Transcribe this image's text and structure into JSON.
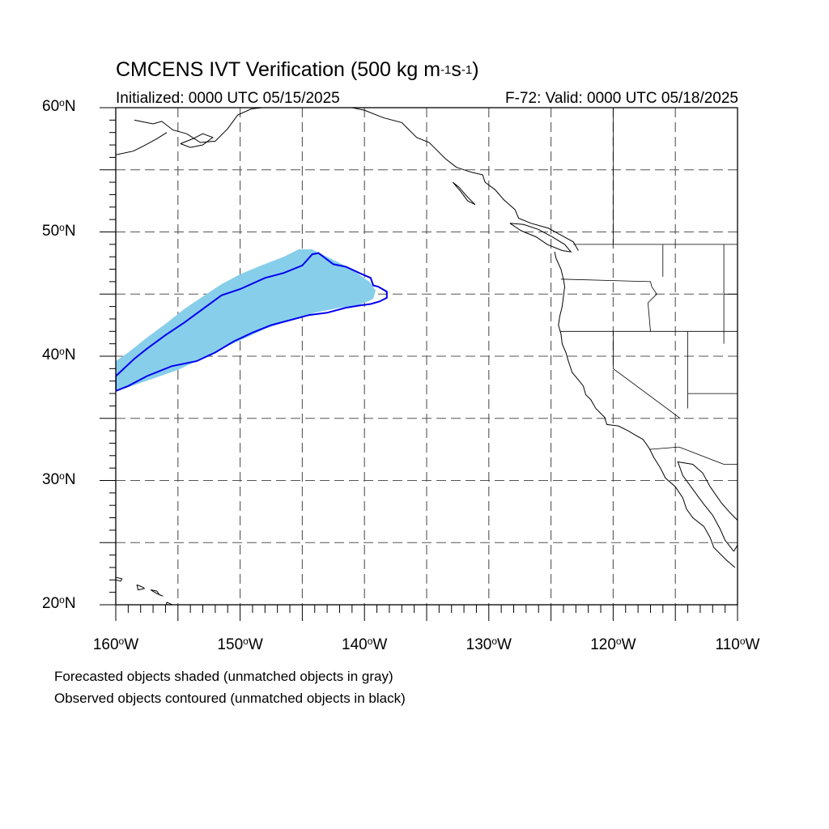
{
  "title": {
    "prefix": "CMCENS IVT Verification (500 kg m",
    "exp1": "-1",
    "mid": "s",
    "exp2": "-1",
    "suffix": ")"
  },
  "initialized": "Initialized: 0000 UTC 05/15/2025",
  "valid": "F-72: Valid: 0000 UTC 05/18/2025",
  "latitude_labels": [
    {
      "lat": 60,
      "num": "60",
      "deg": "o",
      "hemi": "N"
    },
    {
      "lat": 50,
      "num": "50",
      "deg": "o",
      "hemi": "N"
    },
    {
      "lat": 40,
      "num": "40",
      "deg": "o",
      "hemi": "N"
    },
    {
      "lat": 30,
      "num": "30",
      "deg": "o",
      "hemi": "N"
    },
    {
      "lat": 20,
      "num": "20",
      "deg": "o",
      "hemi": "N"
    }
  ],
  "longitude_labels": [
    {
      "lon": -160,
      "num": "160",
      "deg": "o",
      "hemi": "W"
    },
    {
      "lon": -150,
      "num": "150",
      "deg": "o",
      "hemi": "W"
    },
    {
      "lon": -140,
      "num": "140",
      "deg": "o",
      "hemi": "W"
    },
    {
      "lon": -130,
      "num": "130",
      "deg": "o",
      "hemi": "W"
    },
    {
      "lon": -120,
      "num": "120",
      "deg": "o",
      "hemi": "W"
    },
    {
      "lon": -110,
      "num": "110",
      "deg": "o",
      "hemi": "W"
    }
  ],
  "map_extent": {
    "lon_min": -160,
    "lon_max": -110,
    "lat_min": 20,
    "lat_max": 60,
    "grid_step_deg": 5
  },
  "notes": [
    "Forecasted objects shaded (unmatched objects in gray)",
    "Observed objects contoured (unmatched objects in black)"
  ],
  "colors": {
    "forecast_fill": "#87ceeb",
    "observed_contour": "#0000ee",
    "coastline": "#000000",
    "grid": "#555555"
  },
  "forecast_object": [
    [
      -160,
      37.2
    ],
    [
      -159,
      37.5
    ],
    [
      -157,
      38.2
    ],
    [
      -155,
      38.9
    ],
    [
      -153.5,
      39.6
    ],
    [
      -151.5,
      40.6
    ],
    [
      -149.5,
      41.5
    ],
    [
      -148,
      42.2
    ],
    [
      -146,
      42.9
    ],
    [
      -144,
      43.5
    ],
    [
      -142,
      43.9
    ],
    [
      -140.5,
      44.1
    ],
    [
      -139.3,
      44.6
    ],
    [
      -139.1,
      45.3
    ],
    [
      -139.6,
      46.0
    ],
    [
      -140.6,
      46.7
    ],
    [
      -141.8,
      47.4
    ],
    [
      -143,
      48.0
    ],
    [
      -144.2,
      48.6
    ],
    [
      -145.3,
      48.6
    ],
    [
      -146.5,
      48.0
    ],
    [
      -148.3,
      47.3
    ],
    [
      -150,
      46.6
    ],
    [
      -151.5,
      45.8
    ],
    [
      -153,
      44.8
    ],
    [
      -154.5,
      43.8
    ],
    [
      -156,
      42.6
    ],
    [
      -157.5,
      41.5
    ],
    [
      -159,
      40.3
    ],
    [
      -160,
      39.6
    ]
  ],
  "observed_object": [
    [
      -160,
      37.2
    ],
    [
      -159,
      37.6
    ],
    [
      -157.5,
      38.4
    ],
    [
      -155.5,
      39.2
    ],
    [
      -153.5,
      39.6
    ],
    [
      -152,
      40.3
    ],
    [
      -150.5,
      41.2
    ],
    [
      -149,
      41.9
    ],
    [
      -147.5,
      42.5
    ],
    [
      -146,
      42.9
    ],
    [
      -144.5,
      43.3
    ],
    [
      -143,
      43.5
    ],
    [
      -141.5,
      43.9
    ],
    [
      -140.3,
      44.1
    ],
    [
      -139.5,
      44.2
    ],
    [
      -138.8,
      44.4
    ],
    [
      -138.2,
      44.7
    ],
    [
      -138.2,
      45.2
    ],
    [
      -138.9,
      45.6
    ],
    [
      -139.3,
      45.7
    ],
    [
      -139.5,
      46.3
    ],
    [
      -140.2,
      46.6
    ],
    [
      -141.5,
      47.2
    ],
    [
      -142.5,
      47.4
    ],
    [
      -143.7,
      48.3
    ],
    [
      -144.2,
      48.2
    ],
    [
      -145,
      47.3
    ],
    [
      -146.5,
      46.7
    ],
    [
      -148,
      46.3
    ],
    [
      -150,
      45.4
    ],
    [
      -151.5,
      44.9
    ],
    [
      -153,
      43.8
    ],
    [
      -154.5,
      42.7
    ],
    [
      -156,
      41.7
    ],
    [
      -157.5,
      40.6
    ],
    [
      -158.5,
      39.8
    ],
    [
      -160,
      38.4
    ]
  ],
  "coastlines": [
    [
      [
        -158.5,
        59.0
      ],
      [
        -157,
        58.7
      ],
      [
        -156.3,
        58.9
      ],
      [
        -155.4,
        58.2
      ],
      [
        -154.3,
        57.9
      ],
      [
        -153.2,
        57.2
      ],
      [
        -152,
        57.3
      ],
      [
        -151,
        58.3
      ],
      [
        -150.2,
        59.4
      ],
      [
        -149.1,
        59.9
      ],
      [
        -148.2,
        60
      ]
    ],
    [
      [
        -160,
        56.2
      ],
      [
        -158.6,
        56.5
      ],
      [
        -157.8,
        56.9
      ],
      [
        -156.7,
        57.5
      ],
      [
        -155.9,
        58.0
      ]
    ],
    [
      [
        -154.8,
        57.1
      ],
      [
        -153.8,
        57.5
      ],
      [
        -153.0,
        57.9
      ],
      [
        -152.2,
        57.6
      ],
      [
        -153.0,
        57.0
      ],
      [
        -154.0,
        56.8
      ],
      [
        -154.8,
        57.1
      ]
    ],
    [
      [
        -141,
        60
      ],
      [
        -140,
        59.8
      ],
      [
        -138.5,
        59.2
      ],
      [
        -137,
        58.8
      ],
      [
        -136.4,
        58.2
      ],
      [
        -135.8,
        57.6
      ],
      [
        -134.8,
        57.2
      ],
      [
        -134.1,
        56.5
      ],
      [
        -133.5,
        55.9
      ],
      [
        -132.6,
        55.2
      ],
      [
        -131.4,
        54.8
      ],
      [
        -130.5,
        54.6
      ],
      [
        -130.3,
        54.0
      ],
      [
        -129.5,
        53.4
      ],
      [
        -128.8,
        52.6
      ],
      [
        -127.9,
        51.8
      ],
      [
        -127.6,
        51.1
      ],
      [
        -126.6,
        50.7
      ],
      [
        -125.2,
        50.3
      ],
      [
        -124.3,
        49.8
      ],
      [
        -123.2,
        49.2
      ],
      [
        -122.8,
        48.5
      ]
    ],
    [
      [
        -132.9,
        54.0
      ],
      [
        -132.3,
        53.3
      ],
      [
        -131.7,
        52.5
      ],
      [
        -131.1,
        52.2
      ],
      [
        -131.8,
        52.9
      ],
      [
        -132.4,
        53.6
      ],
      [
        -132.9,
        54.0
      ]
    ],
    [
      [
        -128.3,
        50.7
      ],
      [
        -127.4,
        50.1
      ],
      [
        -126.2,
        49.6
      ],
      [
        -125.3,
        49.0
      ],
      [
        -124.1,
        48.5
      ],
      [
        -123.4,
        48.4
      ],
      [
        -123.9,
        49.0
      ],
      [
        -124.9,
        49.6
      ],
      [
        -126.0,
        50.2
      ],
      [
        -127.2,
        50.6
      ],
      [
        -128.3,
        50.7
      ]
    ],
    [
      [
        -124.7,
        48.4
      ],
      [
        -124.6,
        47.9
      ],
      [
        -124.2,
        47.0
      ],
      [
        -124.0,
        46.2
      ],
      [
        -123.9,
        45.6
      ],
      [
        -124.0,
        44.8
      ],
      [
        -124.1,
        44.0
      ],
      [
        -124.3,
        43.2
      ],
      [
        -124.4,
        42.5
      ],
      [
        -124.2,
        41.8
      ],
      [
        -124.1,
        41.0
      ],
      [
        -123.8,
        40.3
      ],
      [
        -123.6,
        39.6
      ],
      [
        -123.3,
        38.7
      ],
      [
        -122.8,
        38.1
      ],
      [
        -122.4,
        37.6
      ],
      [
        -122.2,
        36.9
      ],
      [
        -121.8,
        36.5
      ],
      [
        -121.4,
        35.8
      ],
      [
        -120.7,
        35.1
      ],
      [
        -120.5,
        34.5
      ],
      [
        -119.6,
        34.4
      ],
      [
        -118.8,
        34.0
      ],
      [
        -118.3,
        33.7
      ],
      [
        -117.6,
        33.3
      ],
      [
        -117.1,
        32.6
      ],
      [
        -116.7,
        31.8
      ],
      [
        -116.2,
        31.0
      ],
      [
        -115.8,
        30.2
      ],
      [
        -115.0,
        29.5
      ],
      [
        -114.4,
        28.6
      ],
      [
        -114.1,
        27.7
      ],
      [
        -113.6,
        27.0
      ],
      [
        -112.7,
        26.3
      ],
      [
        -112.2,
        25.4
      ],
      [
        -111.9,
        24.6
      ],
      [
        -110.9,
        23.6
      ],
      [
        -110.2,
        23.0
      ]
    ],
    [
      [
        -110.3,
        24.3
      ],
      [
        -111.0,
        25.2
      ],
      [
        -111.4,
        26.1
      ],
      [
        -112.0,
        27.2
      ],
      [
        -112.8,
        28.2
      ],
      [
        -113.6,
        29.3
      ],
      [
        -114.4,
        30.4
      ],
      [
        -114.8,
        31.5
      ],
      [
        -113.6,
        31.3
      ],
      [
        -112.8,
        30.6
      ],
      [
        -112.2,
        29.5
      ],
      [
        -111.3,
        28.2
      ],
      [
        -110.6,
        27.4
      ],
      [
        -110.0,
        26.8
      ]
    ],
    [
      [
        -110.0,
        27.0
      ],
      [
        -109.5,
        26.1
      ],
      [
        -109.3,
        25.4
      ],
      [
        -110.0,
        24.8
      ],
      [
        -110.3,
        24.3
      ]
    ],
    [
      [
        -160,
        22.2
      ],
      [
        -159.5,
        22.1
      ],
      [
        -159.6,
        21.9
      ],
      [
        -160,
        22.0
      ]
    ],
    [
      [
        -158.3,
        21.6
      ],
      [
        -157.8,
        21.4
      ],
      [
        -157.7,
        21.3
      ],
      [
        -158.2,
        21.2
      ],
      [
        -158.3,
        21.6
      ]
    ],
    [
      [
        -157.2,
        21.2
      ],
      [
        -156.7,
        21.1
      ],
      [
        -156.5,
        20.8
      ],
      [
        -156.2,
        20.7
      ],
      [
        -156.7,
        20.9
      ],
      [
        -157.2,
        21.2
      ]
    ],
    [
      [
        -155.9,
        20.2
      ],
      [
        -155.0,
        19.8
      ],
      [
        -154.8,
        19.5
      ],
      [
        -155.5,
        19.1
      ],
      [
        -156.0,
        19.6
      ],
      [
        -155.9,
        20.2
      ]
    ]
  ],
  "borders": [
    [
      [
        -123.2,
        49.0
      ],
      [
        -110,
        49.0
      ]
    ],
    [
      [
        -141,
        60
      ],
      [
        -141,
        60
      ]
    ],
    [
      [
        -124.2,
        46.2
      ],
      [
        -117.0,
        46.0
      ],
      [
        -116.9,
        45.6
      ],
      [
        -116.5,
        45.0
      ],
      [
        -117.2,
        44.3
      ],
      [
        -117.0,
        42.0
      ]
    ],
    [
      [
        -124.3,
        42.0
      ],
      [
        -110,
        42.0
      ]
    ],
    [
      [
        -120.0,
        42.0
      ],
      [
        -120.0,
        39.0
      ],
      [
        -114.6,
        35.0
      ]
    ],
    [
      [
        -114.0,
        42.0
      ],
      [
        -114.0,
        35.8
      ]
    ],
    [
      [
        -114.0,
        37.0
      ],
      [
        -110,
        37.0
      ]
    ],
    [
      [
        -117.1,
        32.5
      ],
      [
        -114.7,
        32.7
      ],
      [
        -111.1,
        31.3
      ],
      [
        -110,
        31.3
      ]
    ],
    [
      [
        -111.1,
        45.0
      ],
      [
        -110,
        45.0
      ]
    ],
    [
      [
        -111.1,
        49.0
      ],
      [
        -111.1,
        41.0
      ]
    ],
    [
      [
        -120.0,
        60
      ],
      [
        -120.0,
        49.0
      ]
    ],
    [
      [
        -116.0,
        49.0
      ],
      [
        -116.0,
        46.4
      ]
    ]
  ]
}
